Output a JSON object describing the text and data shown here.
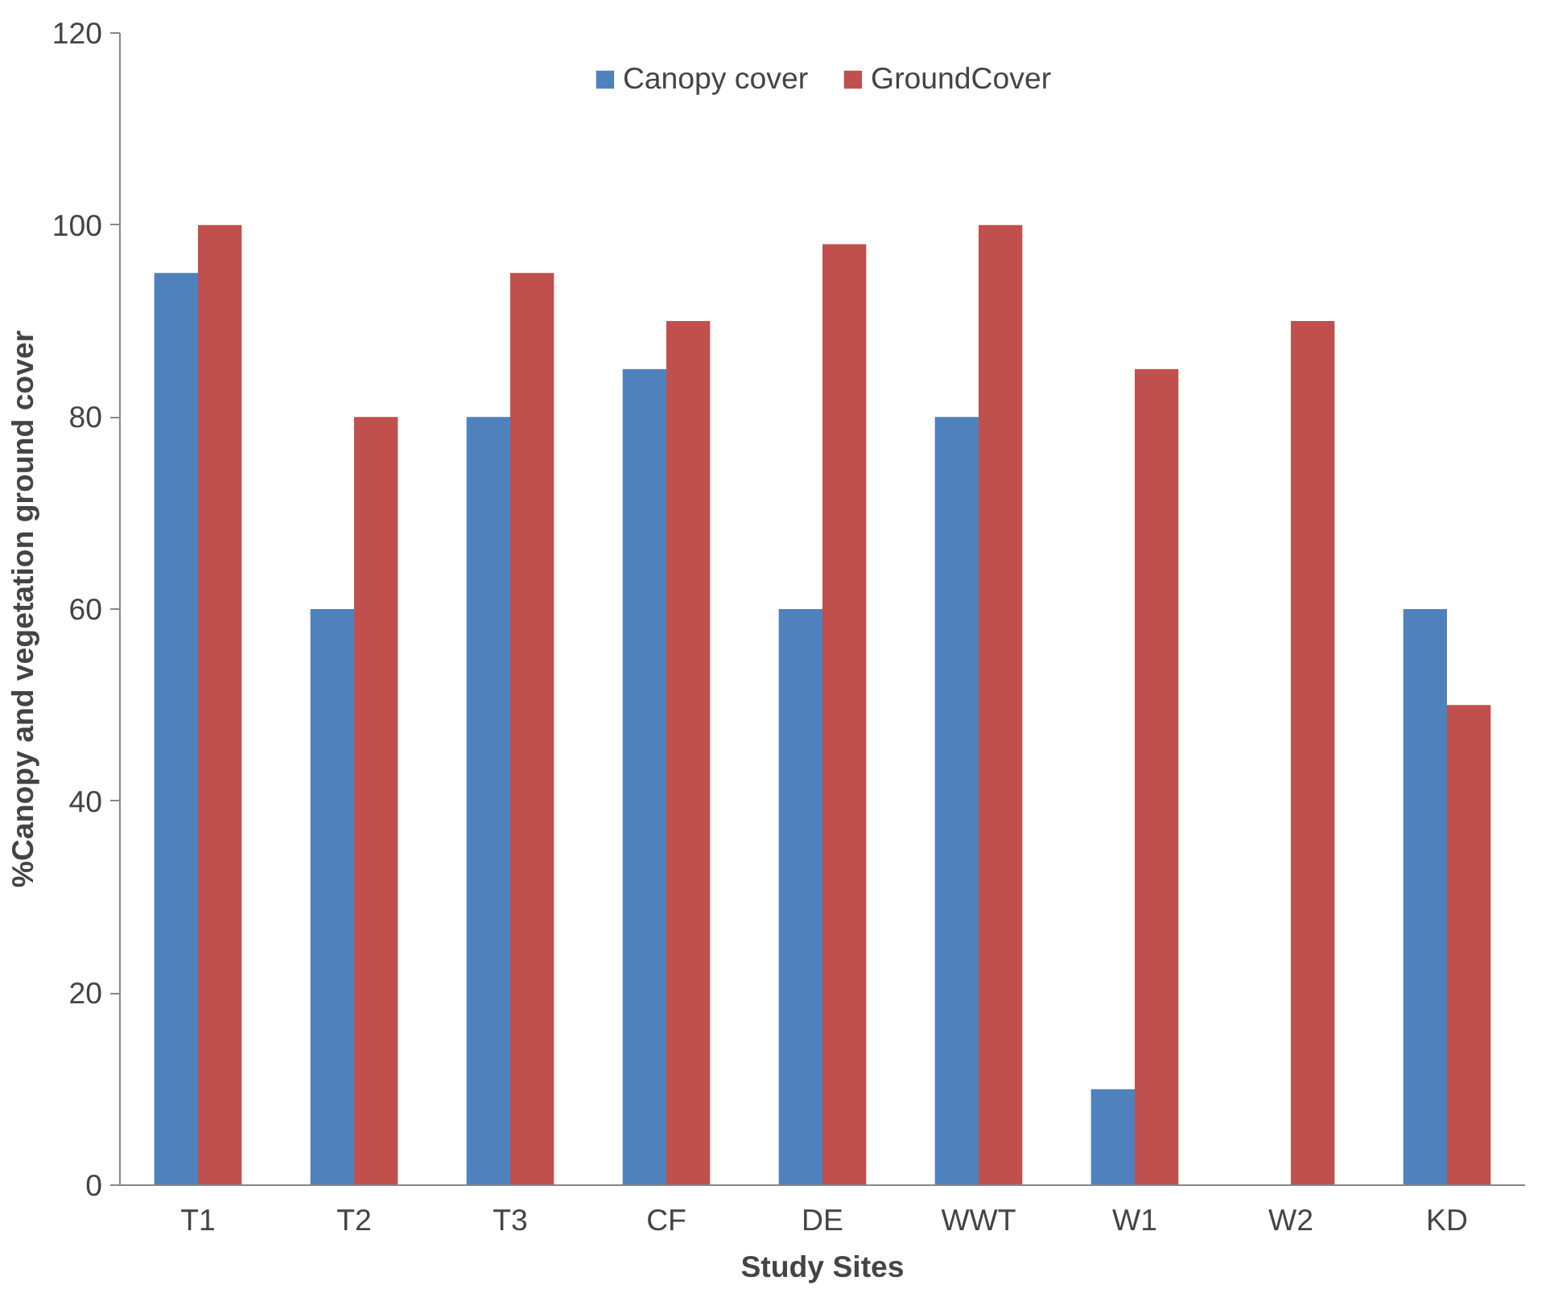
{
  "chart_data": {
    "type": "bar",
    "xlabel": "Study Sites",
    "ylabel": "%Canopy and vegetation ground cover",
    "categories": [
      "T1",
      "T2",
      "T3",
      "CF",
      "DE",
      "WWT",
      "W1",
      "W2",
      "KD"
    ],
    "series": [
      {
        "name": "Canopy cover",
        "color": "#4f81bd",
        "values": [
          95,
          60,
          80,
          85,
          60,
          80,
          10,
          0,
          60
        ]
      },
      {
        "name": "GroundCover",
        "color": "#c0504d",
        "values": [
          100,
          80,
          95,
          90,
          98,
          100,
          85,
          90,
          50
        ]
      }
    ],
    "ylim": [
      0,
      120
    ],
    "yticks": [
      0,
      20,
      40,
      60,
      80,
      100,
      120
    ],
    "grid": false,
    "legend": "top"
  }
}
